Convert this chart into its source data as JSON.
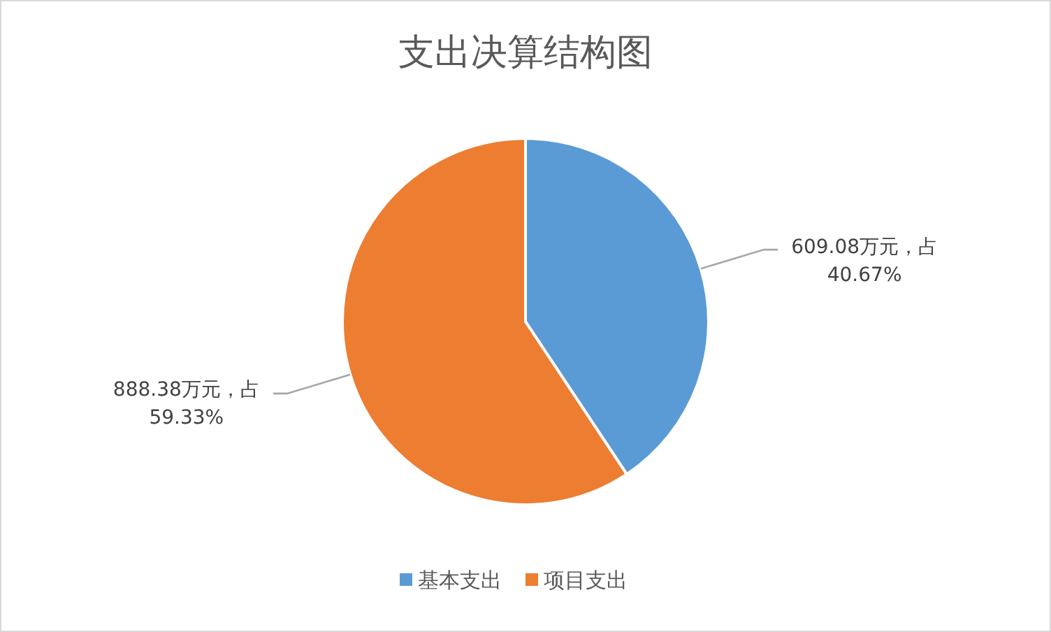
{
  "chart_data": {
    "type": "pie",
    "title": "支出决算结构图",
    "categories": [
      "基本支出",
      "项目支出"
    ],
    "values": [
      609.08,
      888.38
    ],
    "colors": [
      "#5b9bd5",
      "#ed7d31"
    ],
    "value_labels": [
      "609.08万元，占40.67%",
      "888.38万元，占59.33%"
    ],
    "legend": "bottom"
  }
}
